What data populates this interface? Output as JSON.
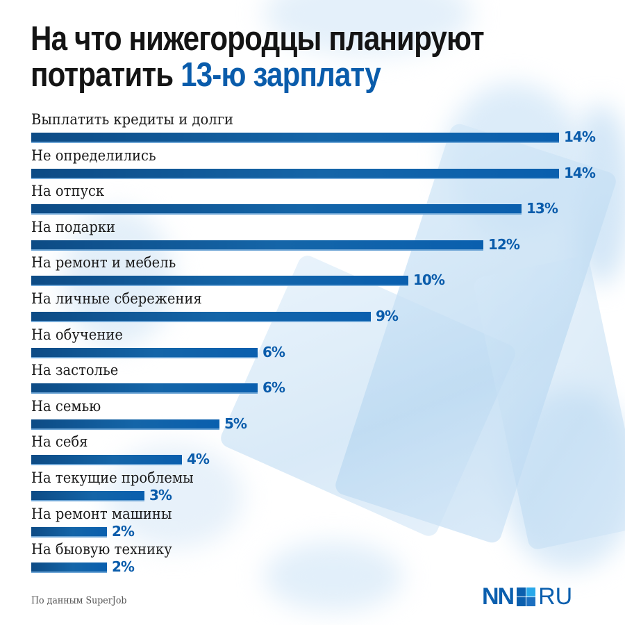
{
  "header": {
    "title_part1": "На что нижегородцы планируют",
    "title_part2": "потратить ",
    "title_accent": "13-ю зарплату"
  },
  "chart_data": {
    "type": "bar",
    "orientation": "horizontal",
    "title": "На что нижегородцы планируют потратить 13-ю зарплату",
    "xlabel": "",
    "ylabel": "",
    "unit": "%",
    "grid": false,
    "categories": [
      "Выплатить кредиты и долги",
      "Не определились",
      "На отпуск",
      "На подарки",
      "На ремонт и мебель",
      "На личные сбережения",
      "На обучение",
      "На застолье",
      "На семью",
      "На себя",
      "На текущие проблемы",
      "На ремонт машины",
      "На быовую технику"
    ],
    "values": [
      14,
      14,
      13,
      12,
      10,
      9,
      6,
      6,
      5,
      4,
      3,
      2,
      2
    ],
    "value_labels": [
      "14%",
      "14%",
      "13%",
      "12%",
      "10%",
      "9%",
      "6%",
      "6%",
      "5%",
      "4%",
      "3%",
      "2%",
      "2%"
    ],
    "xlim": [
      0,
      14
    ],
    "source": "По данным SuperJob"
  },
  "footer": {
    "source": "По данным SuperJob",
    "logo_left": "NN",
    "logo_right": "RU"
  },
  "colors": {
    "accent": "#0a5cab",
    "bar_dark": "#0d4b85",
    "bar_light": "#0a5fae",
    "logo_sq1": "#0b5fae",
    "logo_sq2": "#29a8ea",
    "logo_sq3": "#0b5fae",
    "logo_sq4": "#1c6fc0"
  }
}
